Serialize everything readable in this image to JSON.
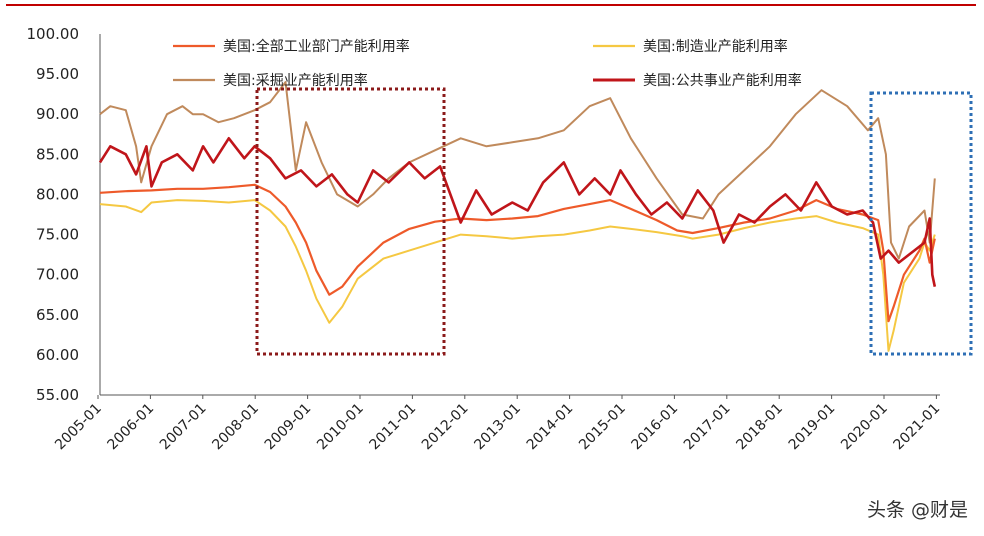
{
  "watermark": "头条 @财是",
  "colors": {
    "total": "#ee5a2a",
    "manufacturing": "#f5c842",
    "mining": "#c08a5c",
    "utilities": "#c0151a",
    "red_box": "#8b1a1a",
    "blue_box": "#2e6fb5"
  },
  "chart_data": {
    "type": "line",
    "ylim": [
      55,
      100
    ],
    "yticks": [
      "55.00",
      "60.00",
      "65.00",
      "70.00",
      "75.00",
      "80.00",
      "85.00",
      "90.00",
      "95.00",
      "100.00"
    ],
    "xticks": [
      "2005-01",
      "2006-01",
      "2007-01",
      "2008-01",
      "2009-01",
      "2010-01",
      "2011-01",
      "2012-01",
      "2013-01",
      "2014-01",
      "2015-01",
      "2016-01",
      "2017-01",
      "2018-01",
      "2019-01",
      "2020-01",
      "2021-01"
    ],
    "x_range": [
      2005.0,
      2021.3
    ],
    "legend": "top, two columns",
    "grid": false,
    "series": [
      {
        "name": "美国:全部工业部门产能利用率",
        "key": "total",
        "points": [
          [
            2005.0,
            80.2
          ],
          [
            2005.5,
            80.4
          ],
          [
            2006.0,
            80.5
          ],
          [
            2006.5,
            80.7
          ],
          [
            2007.0,
            80.7
          ],
          [
            2007.5,
            80.9
          ],
          [
            2008.0,
            81.2
          ],
          [
            2008.3,
            80.3
          ],
          [
            2008.6,
            78.5
          ],
          [
            2008.8,
            76.5
          ],
          [
            2009.0,
            74.0
          ],
          [
            2009.2,
            70.5
          ],
          [
            2009.45,
            67.5
          ],
          [
            2009.7,
            68.5
          ],
          [
            2010.0,
            71.0
          ],
          [
            2010.5,
            74.0
          ],
          [
            2011.0,
            75.7
          ],
          [
            2011.5,
            76.6
          ],
          [
            2012.0,
            77.0
          ],
          [
            2012.5,
            76.8
          ],
          [
            2013.0,
            77.0
          ],
          [
            2013.5,
            77.3
          ],
          [
            2014.0,
            78.2
          ],
          [
            2014.5,
            78.8
          ],
          [
            2014.9,
            79.3
          ],
          [
            2015.3,
            78.2
          ],
          [
            2015.8,
            76.8
          ],
          [
            2016.2,
            75.5
          ],
          [
            2016.5,
            75.2
          ],
          [
            2017.0,
            75.8
          ],
          [
            2017.5,
            76.5
          ],
          [
            2018.0,
            77.0
          ],
          [
            2018.5,
            78.0
          ],
          [
            2018.9,
            79.3
          ],
          [
            2019.3,
            78.2
          ],
          [
            2019.8,
            77.5
          ],
          [
            2020.1,
            76.8
          ],
          [
            2020.2,
            73.0
          ],
          [
            2020.3,
            64.2
          ],
          [
            2020.4,
            66.0
          ],
          [
            2020.6,
            70.0
          ],
          [
            2020.9,
            73.0
          ],
          [
            2021.0,
            74.5
          ],
          [
            2021.1,
            71.5
          ],
          [
            2021.2,
            74.5
          ]
        ]
      },
      {
        "name": "美国:制造业产能利用率",
        "key": "manufacturing",
        "points": [
          [
            2005.0,
            78.8
          ],
          [
            2005.5,
            78.5
          ],
          [
            2005.8,
            77.8
          ],
          [
            2006.0,
            79.0
          ],
          [
            2006.5,
            79.3
          ],
          [
            2007.0,
            79.2
          ],
          [
            2007.5,
            79.0
          ],
          [
            2008.0,
            79.3
          ],
          [
            2008.3,
            78.0
          ],
          [
            2008.6,
            76.0
          ],
          [
            2008.8,
            73.5
          ],
          [
            2009.0,
            70.5
          ],
          [
            2009.2,
            67.0
          ],
          [
            2009.45,
            64.0
          ],
          [
            2009.7,
            66.0
          ],
          [
            2010.0,
            69.5
          ],
          [
            2010.5,
            72.0
          ],
          [
            2011.0,
            73.0
          ],
          [
            2011.5,
            74.0
          ],
          [
            2012.0,
            75.0
          ],
          [
            2012.5,
            74.8
          ],
          [
            2013.0,
            74.5
          ],
          [
            2013.5,
            74.8
          ],
          [
            2014.0,
            75.0
          ],
          [
            2014.5,
            75.5
          ],
          [
            2014.9,
            76.0
          ],
          [
            2015.3,
            75.7
          ],
          [
            2015.8,
            75.3
          ],
          [
            2016.3,
            74.8
          ],
          [
            2016.5,
            74.5
          ],
          [
            2017.0,
            75.0
          ],
          [
            2017.5,
            75.8
          ],
          [
            2018.0,
            76.5
          ],
          [
            2018.5,
            77.0
          ],
          [
            2018.9,
            77.3
          ],
          [
            2019.3,
            76.5
          ],
          [
            2019.8,
            75.8
          ],
          [
            2020.1,
            75.0
          ],
          [
            2020.2,
            70.0
          ],
          [
            2020.3,
            60.5
          ],
          [
            2020.4,
            63.0
          ],
          [
            2020.6,
            69.0
          ],
          [
            2020.9,
            72.0
          ],
          [
            2021.0,
            74.0
          ],
          [
            2021.1,
            73.0
          ],
          [
            2021.2,
            75.0
          ]
        ]
      },
      {
        "name": "美国:采掘业产能利用率",
        "key": "mining",
        "points": [
          [
            2005.0,
            90.0
          ],
          [
            2005.2,
            91.0
          ],
          [
            2005.5,
            90.5
          ],
          [
            2005.7,
            86.0
          ],
          [
            2005.8,
            81.5
          ],
          [
            2006.0,
            86.0
          ],
          [
            2006.3,
            90.0
          ],
          [
            2006.6,
            91.0
          ],
          [
            2006.8,
            90.0
          ],
          [
            2007.0,
            90.0
          ],
          [
            2007.3,
            89.0
          ],
          [
            2007.6,
            89.5
          ],
          [
            2008.0,
            90.5
          ],
          [
            2008.3,
            91.5
          ],
          [
            2008.6,
            94.0
          ],
          [
            2008.8,
            83.0
          ],
          [
            2009.0,
            89.0
          ],
          [
            2009.3,
            84.0
          ],
          [
            2009.6,
            80.0
          ],
          [
            2010.0,
            78.5
          ],
          [
            2010.3,
            80.0
          ],
          [
            2010.6,
            82.0
          ],
          [
            2011.0,
            84.0
          ],
          [
            2011.5,
            85.5
          ],
          [
            2012.0,
            87.0
          ],
          [
            2012.5,
            86.0
          ],
          [
            2013.0,
            86.5
          ],
          [
            2013.5,
            87.0
          ],
          [
            2014.0,
            88.0
          ],
          [
            2014.5,
            91.0
          ],
          [
            2014.9,
            92.0
          ],
          [
            2015.3,
            87.0
          ],
          [
            2015.8,
            82.0
          ],
          [
            2016.3,
            77.5
          ],
          [
            2016.7,
            77.0
          ],
          [
            2017.0,
            80.0
          ],
          [
            2017.5,
            83.0
          ],
          [
            2018.0,
            86.0
          ],
          [
            2018.5,
            90.0
          ],
          [
            2019.0,
            93.0
          ],
          [
            2019.5,
            91.0
          ],
          [
            2019.9,
            88.0
          ],
          [
            2020.1,
            89.5
          ],
          [
            2020.25,
            85.0
          ],
          [
            2020.35,
            74.0
          ],
          [
            2020.5,
            72.0
          ],
          [
            2020.7,
            76.0
          ],
          [
            2021.0,
            78.0
          ],
          [
            2021.1,
            74.0
          ],
          [
            2021.2,
            82.0
          ]
        ]
      },
      {
        "name": "美国:公共事业产能利用率",
        "key": "utilities",
        "points": [
          [
            2005.0,
            84.0
          ],
          [
            2005.2,
            86.0
          ],
          [
            2005.5,
            85.0
          ],
          [
            2005.7,
            82.5
          ],
          [
            2005.9,
            86.0
          ],
          [
            2006.0,
            81.0
          ],
          [
            2006.2,
            84.0
          ],
          [
            2006.5,
            85.0
          ],
          [
            2006.8,
            83.0
          ],
          [
            2007.0,
            86.0
          ],
          [
            2007.2,
            84.0
          ],
          [
            2007.5,
            87.0
          ],
          [
            2007.8,
            84.5
          ],
          [
            2008.0,
            86.0
          ],
          [
            2008.3,
            84.5
          ],
          [
            2008.6,
            82.0
          ],
          [
            2008.9,
            83.0
          ],
          [
            2009.2,
            81.0
          ],
          [
            2009.5,
            82.5
          ],
          [
            2009.8,
            80.0
          ],
          [
            2010.0,
            79.0
          ],
          [
            2010.3,
            83.0
          ],
          [
            2010.6,
            81.5
          ],
          [
            2011.0,
            84.0
          ],
          [
            2011.3,
            82.0
          ],
          [
            2011.6,
            83.5
          ],
          [
            2012.0,
            76.5
          ],
          [
            2012.3,
            80.5
          ],
          [
            2012.6,
            77.5
          ],
          [
            2013.0,
            79.0
          ],
          [
            2013.3,
            78.0
          ],
          [
            2013.6,
            81.5
          ],
          [
            2014.0,
            84.0
          ],
          [
            2014.3,
            80.0
          ],
          [
            2014.6,
            82.0
          ],
          [
            2014.9,
            80.0
          ],
          [
            2015.1,
            83.0
          ],
          [
            2015.4,
            80.0
          ],
          [
            2015.7,
            77.5
          ],
          [
            2016.0,
            79.0
          ],
          [
            2016.3,
            77.0
          ],
          [
            2016.6,
            80.5
          ],
          [
            2016.9,
            78.0
          ],
          [
            2017.1,
            74.0
          ],
          [
            2017.4,
            77.5
          ],
          [
            2017.7,
            76.5
          ],
          [
            2018.0,
            78.5
          ],
          [
            2018.3,
            80.0
          ],
          [
            2018.6,
            78.0
          ],
          [
            2018.9,
            81.5
          ],
          [
            2019.2,
            78.5
          ],
          [
            2019.5,
            77.5
          ],
          [
            2019.8,
            78.0
          ],
          [
            2020.0,
            76.5
          ],
          [
            2020.15,
            72.0
          ],
          [
            2020.3,
            73.0
          ],
          [
            2020.5,
            71.5
          ],
          [
            2020.8,
            73.0
          ],
          [
            2021.0,
            74.0
          ],
          [
            2021.1,
            77.0
          ],
          [
            2021.15,
            70.0
          ],
          [
            2021.2,
            68.5
          ]
        ]
      }
    ]
  }
}
